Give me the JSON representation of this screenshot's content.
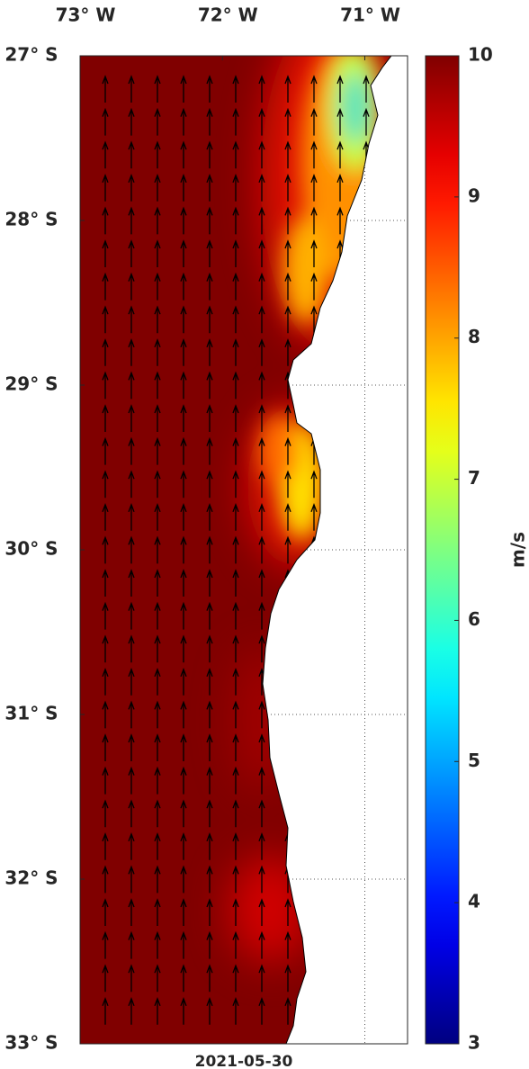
{
  "map": {
    "lonlim": [
      -73,
      -70.7
    ],
    "latlim": [
      -33,
      -27
    ],
    "lon_ticks": [
      {
        "value": -73,
        "label": "73° W"
      },
      {
        "value": -72,
        "label": "72° W"
      },
      {
        "value": -71,
        "label": "71° W"
      }
    ],
    "lat_ticks": [
      {
        "value": -27,
        "label": "27° S"
      },
      {
        "value": -28,
        "label": "28° S"
      },
      {
        "value": -29,
        "label": "29° S"
      },
      {
        "value": -30,
        "label": "30° S"
      },
      {
        "value": -31,
        "label": "31° S"
      },
      {
        "value": -32,
        "label": "32° S"
      },
      {
        "value": -33,
        "label": "33° S"
      }
    ],
    "date": "2021-05-30"
  },
  "colorbar": {
    "clim": [
      3,
      10
    ],
    "ticks": [
      3,
      4,
      5,
      6,
      7,
      8,
      9,
      10
    ],
    "label": "m/s"
  }
}
